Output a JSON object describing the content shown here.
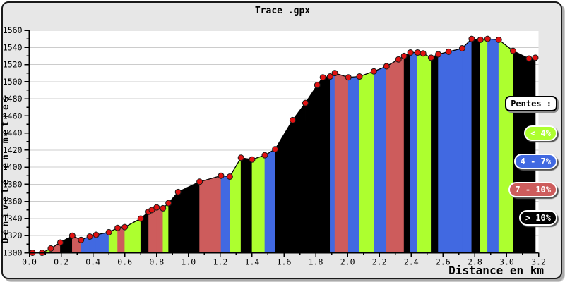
{
  "window": {
    "title": "Trace .gpx"
  },
  "colors": {
    "window_background": "#e7e7e7",
    "window_border": "#1a1a1a",
    "plot_background": "#ffffff",
    "gridline": "#cccccc",
    "axis": "#000000"
  },
  "legend": {
    "title": "Pentes :",
    "items": [
      {
        "label": "< 4%",
        "class": "g"
      },
      {
        "label": "4 - 7%",
        "class": "b"
      },
      {
        "label": "7 - 10%",
        "class": "r"
      },
      {
        "label": "> 10%",
        "class": "k"
      }
    ]
  },
  "chart_data": {
    "type": "area",
    "title": "Trace .gpx",
    "xlabel": "Distance en km",
    "ylabel": "Dénivelé en metres",
    "xlim": [
      0,
      3.2
    ],
    "ylim": [
      1300,
      1560
    ],
    "x_tick_step": 0.2,
    "x_minor_step": 0.1,
    "y_tick_step": 20,
    "y_minor_step": 10,
    "grid": "horizontal",
    "legend_position": "right",
    "line_color": "#000000",
    "marker_color": "#e01212",
    "marker_stroke": "#1a1a1a",
    "classes": {
      "g": {
        "label": "< 4%",
        "color": "#ADFF2F"
      },
      "b": {
        "label": "4 - 7%",
        "color": "#4169E1"
      },
      "r": {
        "label": "7 - 10%",
        "color": "#CD5C5C"
      },
      "k": {
        "label": "> 10%",
        "color": "#000000"
      }
    },
    "x_km": [
      0.02,
      0.08,
      0.135,
      0.195,
      0.27,
      0.325,
      0.38,
      0.42,
      0.5,
      0.555,
      0.6,
      0.7,
      0.75,
      0.77,
      0.8,
      0.84,
      0.875,
      0.935,
      1.07,
      1.205,
      1.26,
      1.33,
      1.4,
      1.48,
      1.545,
      1.655,
      1.735,
      1.81,
      1.845,
      1.89,
      1.92,
      2.005,
      2.075,
      2.165,
      2.245,
      2.32,
      2.355,
      2.395,
      2.44,
      2.475,
      2.525,
      2.57,
      2.635,
      2.72,
      2.78,
      2.835,
      2.88,
      2.95,
      3.04,
      3.14,
      3.18
    ],
    "elevation_m": [
      1300,
      1300,
      1305,
      1312,
      1320,
      1315,
      1319,
      1321,
      1324,
      1329,
      1330,
      1340,
      1348,
      1350,
      1353,
      1352,
      1358,
      1371,
      1383,
      1390,
      1389,
      1411,
      1409,
      1414,
      1421,
      1455,
      1475,
      1496,
      1505,
      1506,
      1510,
      1505,
      1506,
      1512,
      1518,
      1526,
      1530,
      1534,
      1534,
      1533,
      1528,
      1532,
      1535,
      1539,
      1550,
      1549,
      1550,
      1549,
      1536,
      1527,
      1528
    ],
    "segment_class": [
      "g",
      "g",
      "r",
      "k",
      "r",
      "b",
      "b",
      "b",
      "g",
      "r",
      "g",
      "k",
      "r",
      "r",
      "r",
      "g",
      "k",
      "k",
      "r",
      "b",
      "g",
      "k",
      "g",
      "b",
      "k",
      "k",
      "k",
      "k",
      "k",
      "b",
      "r",
      "b",
      "g",
      "b",
      "r",
      "r",
      "k",
      "b",
      "g",
      "g",
      "k",
      "b",
      "b",
      "b",
      "k",
      "g",
      "b",
      "g",
      "k",
      "k"
    ]
  }
}
